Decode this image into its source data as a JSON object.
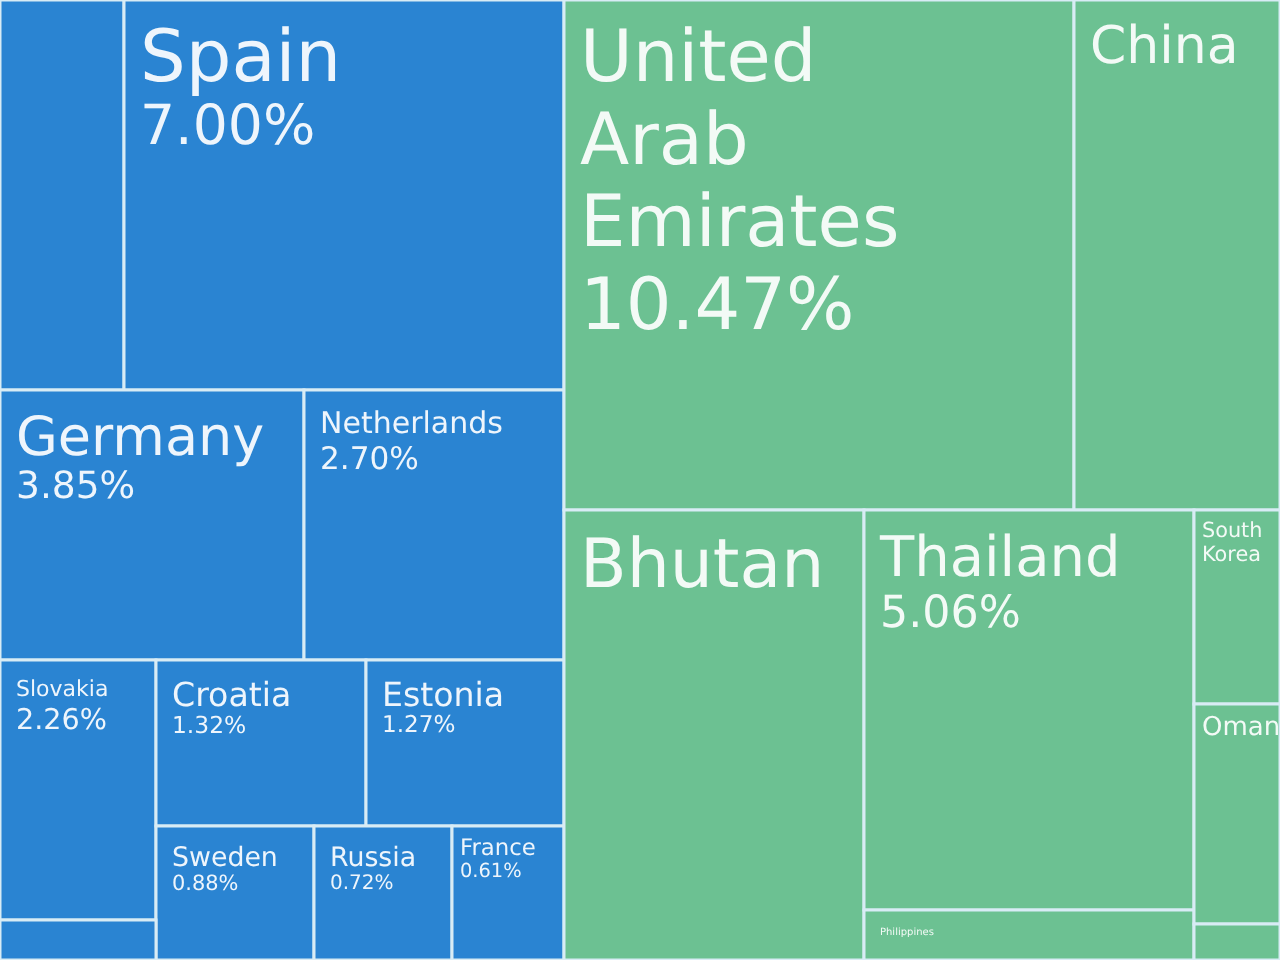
{
  "chart_data": {
    "type": "other",
    "categories": [
      null,
      "Spain",
      "Germany",
      "Netherlands",
      "Slovakia",
      "Croatia",
      "Estonia",
      "Sweden",
      "Russia",
      "France",
      null,
      "United Arab Emirates",
      "China",
      "Bhutan",
      "Thailand",
      "Philippines",
      "South Korea",
      "Oman",
      null
    ],
    "values": [
      null,
      7.0,
      3.85,
      2.7,
      2.26,
      1.32,
      1.27,
      0.88,
      0.72,
      0.61,
      null,
      10.47,
      null,
      null,
      5.06,
      null,
      null,
      null,
      null
    ],
    "value_labels": [
      null,
      "7.00%",
      "3.85%",
      "2.70%",
      "2.26%",
      "1.32%",
      "1.27%",
      "0.88%",
      "0.72%",
      "0.61%",
      null,
      "10.47%",
      null,
      null,
      "5.06%",
      null,
      null,
      null,
      null
    ],
    "colors": [
      "#2a84d2",
      "#2a84d2",
      "#2a84d2",
      "#2a84d2",
      "#2a84d2",
      "#2a84d2",
      "#2a84d2",
      "#2a84d2",
      "#2a84d2",
      "#2a84d2",
      "#2a84d2",
      "#6cc192",
      "#6cc192",
      "#6cc192",
      "#6cc192",
      "#6cc192",
      "#6cc192",
      "#6cc192",
      "#6cc192"
    ]
  }
}
